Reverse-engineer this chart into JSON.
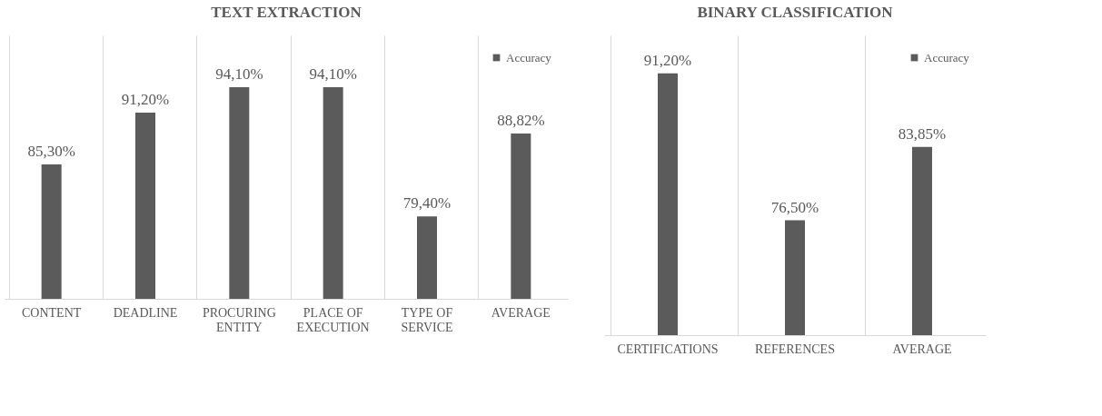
{
  "chart_data": [
    {
      "type": "bar",
      "title": "TEXT EXTRACTION",
      "categories": [
        "CONTENT",
        "DEADLINE",
        "PROCURING ENTITY",
        "PLACE OF EXECUTION",
        "TYPE OF SERVICE",
        "AVERAGE"
      ],
      "series": [
        {
          "name": "Accuracy",
          "color": "#5b5b5b",
          "values": [
            85.3,
            91.2,
            94.1,
            94.1,
            79.4,
            88.82
          ],
          "value_labels": [
            "85,30%",
            "91,20%",
            "94,10%",
            "94,10%",
            "79,40%",
            "88,82%"
          ]
        }
      ],
      "ylim": [
        70,
        100
      ],
      "grid": "x",
      "legend": "top right",
      "tick_labels": "x"
    },
    {
      "type": "bar",
      "title": "BINARY CLASSIFICATION",
      "categories": [
        "CERTIFICATIONS",
        "REFERENCES",
        "AVERAGE"
      ],
      "series": [
        {
          "name": "Accuracy",
          "color": "#5b5b5b",
          "values": [
            91.2,
            76.5,
            83.85
          ],
          "value_labels": [
            "91,20%",
            "76,50%",
            "83,85%"
          ]
        }
      ],
      "ylim": [
        65,
        95
      ],
      "grid": "x",
      "legend": "top right",
      "tick_labels": "x"
    }
  ]
}
